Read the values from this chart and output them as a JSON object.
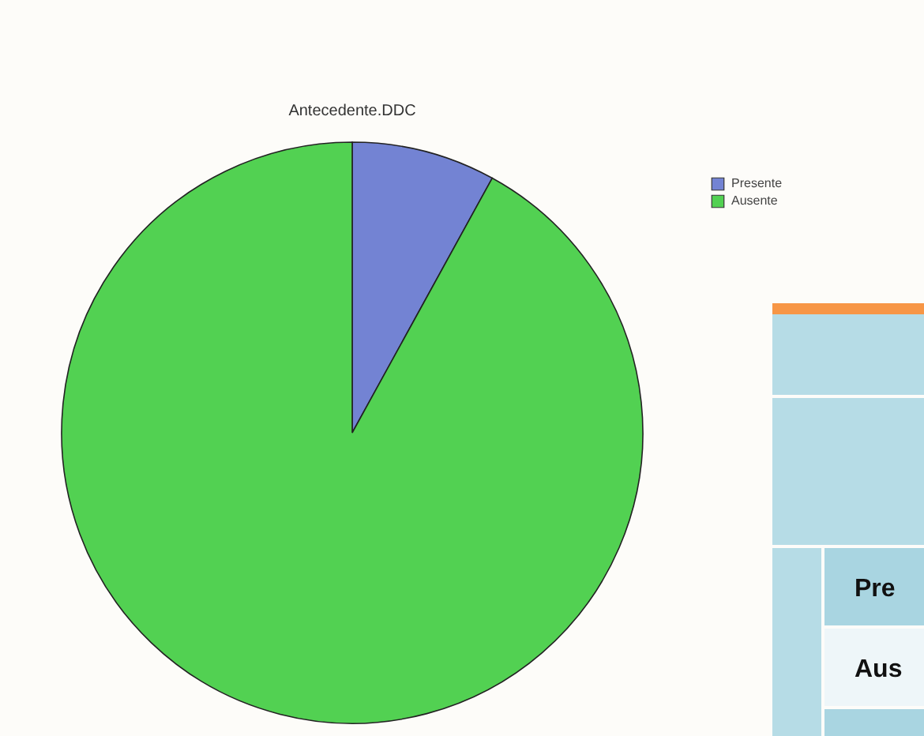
{
  "chart_data": {
    "type": "pie",
    "title": "Antecedente.DDC",
    "categories": [
      "Presente",
      "Ausente"
    ],
    "values": [
      8,
      92
    ],
    "colors": [
      "#7383d3",
      "#52d152"
    ],
    "legend": "top right",
    "annotations": [
      "Pre",
      "Aus"
    ]
  }
}
